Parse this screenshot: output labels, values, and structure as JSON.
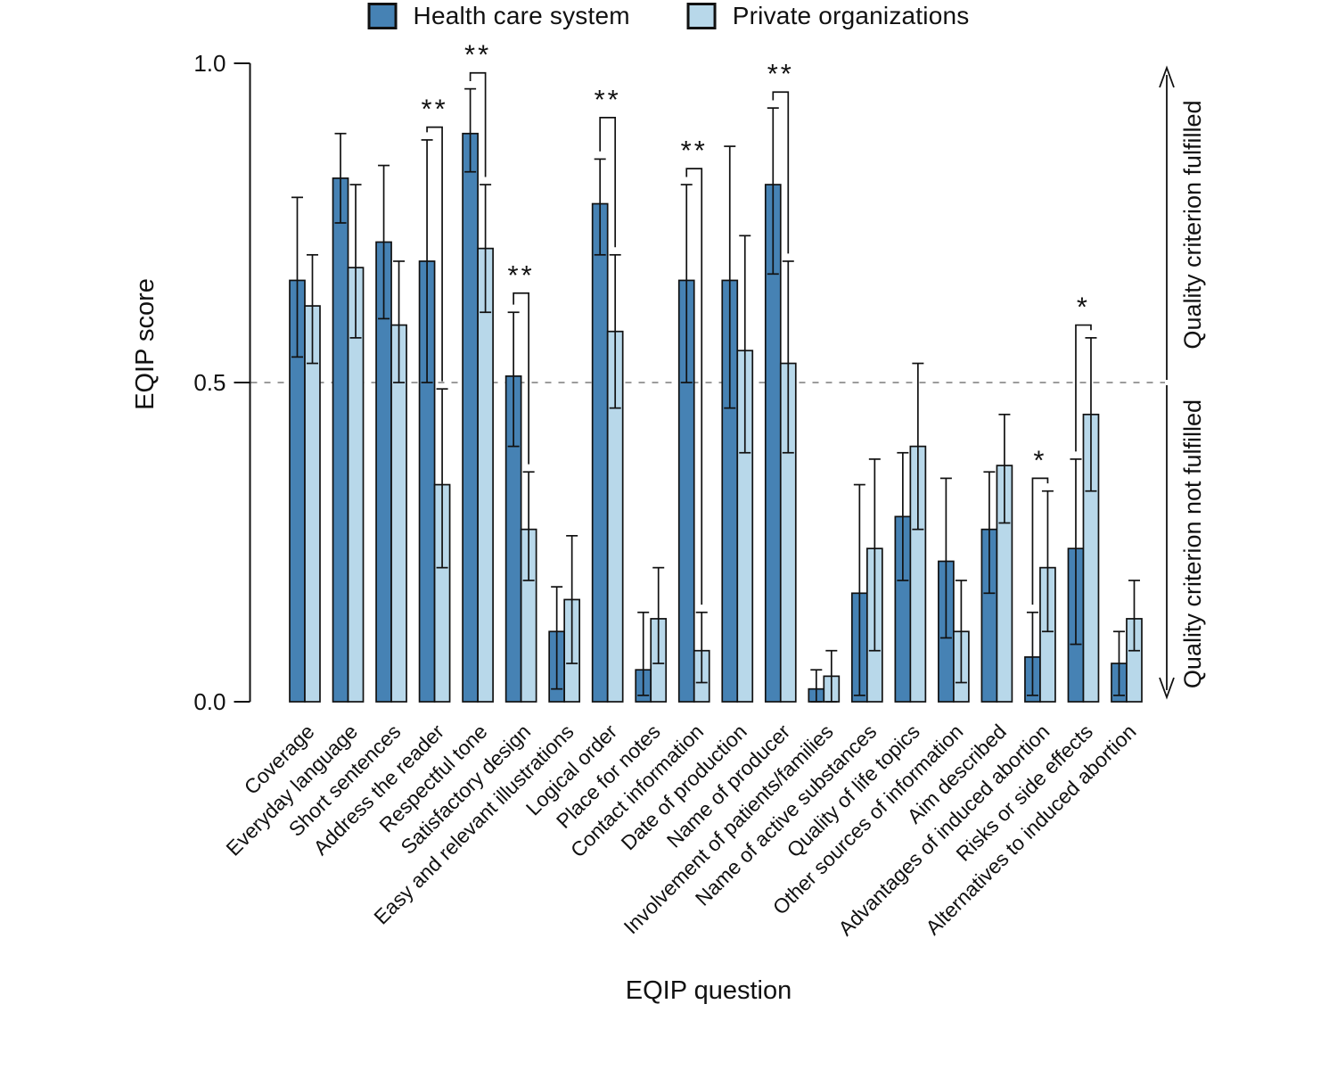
{
  "chart_data": {
    "type": "bar",
    "title": "",
    "ylabel": "EQIP score",
    "xlabel": "EQIP question",
    "ylim": [
      0.0,
      1.0
    ],
    "grid": false,
    "legend_position": "top",
    "yticks": [
      {
        "value": 0.0,
        "label": "0.0"
      },
      {
        "value": 0.5,
        "label": "0.5"
      },
      {
        "value": 1.0,
        "label": "1.0"
      }
    ],
    "reference_line": {
      "value": 0.5,
      "style": "dashed",
      "color": "#8f8f8f"
    },
    "right_labels": {
      "top": "Quality criterion fulfilled",
      "bottom": "Quality criterion not fulfilled"
    },
    "categories": [
      "Coverage",
      "Everyday language",
      "Short sentences",
      "Address the reader",
      "Respectful tone",
      "Satisfactory design",
      "Easy and relevant illustrations",
      "Logical order",
      "Place for notes",
      "Contact information",
      "Date of production",
      "Name of producer",
      "Involvement of patients/families",
      "Name of active substances",
      "Quality of life topics",
      "Other sources of information",
      "Aim described",
      "Advantages of induced abortion",
      "Risks or side effects",
      "Alternatives to induced abortion"
    ],
    "series": [
      {
        "name": "Health care system",
        "color": "#4682b4",
        "values": [
          0.66,
          0.82,
          0.72,
          0.69,
          0.89,
          0.51,
          0.11,
          0.78,
          0.05,
          0.66,
          0.66,
          0.81,
          0.02,
          0.17,
          0.29,
          0.22,
          0.27,
          0.07,
          0.24,
          0.06
        ],
        "ci_low": [
          0.54,
          0.75,
          0.6,
          0.5,
          0.83,
          0.4,
          0.02,
          0.7,
          0.01,
          0.5,
          0.46,
          0.67,
          0.0,
          0.01,
          0.19,
          0.1,
          0.17,
          0.01,
          0.09,
          0.01
        ],
        "ci_high": [
          0.79,
          0.89,
          0.84,
          0.88,
          0.96,
          0.61,
          0.18,
          0.85,
          0.14,
          0.81,
          0.87,
          0.93,
          0.05,
          0.34,
          0.39,
          0.35,
          0.36,
          0.14,
          0.38,
          0.11
        ]
      },
      {
        "name": "Private organizations",
        "color": "#b8d8ea",
        "values": [
          0.62,
          0.68,
          0.59,
          0.34,
          0.71,
          0.27,
          0.16,
          0.58,
          0.13,
          0.08,
          0.55,
          0.53,
          0.04,
          0.24,
          0.4,
          0.11,
          0.37,
          0.21,
          0.45,
          0.13
        ],
        "ci_low": [
          0.53,
          0.57,
          0.5,
          0.21,
          0.61,
          0.19,
          0.06,
          0.46,
          0.06,
          0.03,
          0.39,
          0.39,
          0.0,
          0.08,
          0.27,
          0.03,
          0.28,
          0.11,
          0.33,
          0.08
        ],
        "ci_high": [
          0.7,
          0.81,
          0.69,
          0.49,
          0.81,
          0.36,
          0.26,
          0.7,
          0.21,
          0.14,
          0.73,
          0.69,
          0.08,
          0.38,
          0.53,
          0.19,
          0.45,
          0.33,
          0.57,
          0.19
        ]
      }
    ],
    "significance": [
      {
        "category_index": 3,
        "category": "Address the reader",
        "marker": "**",
        "bracket_y": 0.9
      },
      {
        "category_index": 4,
        "category": "Respectful tone",
        "marker": "**",
        "bracket_y": 0.985
      },
      {
        "category_index": 5,
        "category": "Satisfactory design",
        "marker": "**",
        "bracket_y": 0.64
      },
      {
        "category_index": 7,
        "category": "Logical order",
        "marker": "**",
        "bracket_y": 0.915
      },
      {
        "category_index": 9,
        "category": "Contact information",
        "marker": "**",
        "bracket_y": 0.835
      },
      {
        "category_index": 11,
        "category": "Name of producer",
        "marker": "**",
        "bracket_y": 0.955
      },
      {
        "category_index": 17,
        "category": "Advantages of induced abortion",
        "marker": "*",
        "bracket_y": 0.35
      },
      {
        "category_index": 18,
        "category": "Risks or side effects",
        "marker": "*",
        "bracket_y": 0.59
      }
    ]
  }
}
